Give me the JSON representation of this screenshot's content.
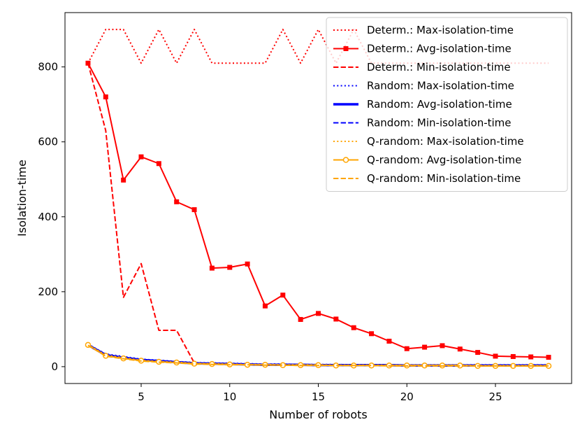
{
  "chart_data": {
    "type": "line",
    "xlabel": "Number of robots",
    "ylabel": "Isolation-time",
    "xlim": [
      0.7,
      29.3
    ],
    "ylim": [
      -45,
      945
    ],
    "xticks": [
      5,
      10,
      15,
      20,
      25
    ],
    "yticks": [
      0,
      200,
      400,
      600,
      800
    ],
    "legend_position": "top-right",
    "x": [
      2,
      3,
      4,
      5,
      6,
      7,
      8,
      9,
      10,
      11,
      12,
      13,
      14,
      15,
      16,
      17,
      18,
      19,
      20,
      21,
      22,
      23,
      24,
      25,
      26,
      27,
      28
    ],
    "series": [
      {
        "name": "Determ.: Max-isolation-time",
        "color": "#ff0000",
        "style": "dotted",
        "marker": "none",
        "width": 2,
        "values": [
          810,
          900,
          900,
          810,
          900,
          810,
          900,
          810,
          810,
          810,
          810,
          900,
          810,
          900,
          810,
          900,
          810,
          810,
          810,
          810,
          810,
          810,
          810,
          810,
          810,
          810,
          810
        ]
      },
      {
        "name": "Determ.: Avg-isolation-time",
        "color": "#ff0000",
        "style": "solid",
        "marker": "square",
        "width": 2,
        "values": [
          810,
          720,
          498,
          560,
          542,
          440,
          419,
          263,
          265,
          274,
          162,
          191,
          126,
          142,
          127,
          104,
          88,
          68,
          48,
          52,
          56,
          47,
          38,
          28,
          27,
          26,
          25
        ]
      },
      {
        "name": "Determ.: Min-isolation-time",
        "color": "#ff0000",
        "style": "dashed",
        "marker": "none",
        "width": 2,
        "values": [
          810,
          630,
          185,
          275,
          97,
          97,
          10,
          8,
          7,
          6,
          6,
          5,
          5,
          5,
          5,
          4,
          4,
          4,
          4,
          4,
          4,
          4,
          4,
          4,
          4,
          4,
          4
        ]
      },
      {
        "name": "Random: Max-isolation-time",
        "color": "#0000ff",
        "style": "dotted",
        "marker": "none",
        "width": 2,
        "values": [
          60,
          34,
          27,
          20,
          17,
          14,
          11,
          10,
          9,
          8,
          7,
          7,
          6,
          6,
          6,
          5,
          5,
          5,
          5,
          5,
          5,
          5,
          5,
          5,
          5,
          5,
          5
        ]
      },
      {
        "name": "Random: Avg-isolation-time",
        "color": "#0000ff",
        "style": "solid",
        "marker": "none",
        "width": 3.5,
        "values": [
          58,
          31,
          24,
          18,
          15,
          12,
          9,
          8,
          7,
          6,
          5,
          5,
          5,
          4,
          4,
          4,
          4,
          4,
          3,
          3,
          3,
          3,
          3,
          3,
          3,
          3,
          3
        ]
      },
      {
        "name": "Random: Min-isolation-time",
        "color": "#0000ff",
        "style": "dashed",
        "marker": "none",
        "width": 2,
        "values": [
          57,
          29,
          22,
          16,
          13,
          10,
          8,
          7,
          6,
          5,
          5,
          4,
          4,
          4,
          3,
          3,
          3,
          3,
          3,
          3,
          3,
          3,
          3,
          2,
          2,
          2,
          2
        ]
      },
      {
        "name": "Q-random: Max-isolation-time",
        "color": "#ffa500",
        "style": "dotted",
        "marker": "none",
        "width": 2,
        "values": [
          59,
          31,
          24,
          17,
          14,
          12,
          9,
          8,
          7,
          6,
          6,
          5,
          5,
          5,
          4,
          4,
          4,
          4,
          4,
          4,
          4,
          4,
          3,
          3,
          3,
          3,
          3
        ]
      },
      {
        "name": "Q-random: Avg-isolation-time",
        "color": "#ffa500",
        "style": "solid",
        "marker": "circle",
        "width": 2,
        "values": [
          58,
          29,
          22,
          16,
          13,
          11,
          8,
          7,
          6,
          5,
          5,
          4,
          4,
          4,
          3,
          3,
          3,
          3,
          3,
          3,
          3,
          3,
          2,
          2,
          2,
          2,
          2
        ]
      },
      {
        "name": "Q-random: Min-isolation-time",
        "color": "#ffa500",
        "style": "dashed",
        "marker": "none",
        "width": 2,
        "values": [
          57,
          28,
          21,
          15,
          12,
          10,
          7,
          6,
          5,
          5,
          4,
          4,
          3,
          3,
          3,
          3,
          3,
          2,
          2,
          2,
          2,
          2,
          2,
          2,
          2,
          2,
          2
        ]
      }
    ]
  }
}
